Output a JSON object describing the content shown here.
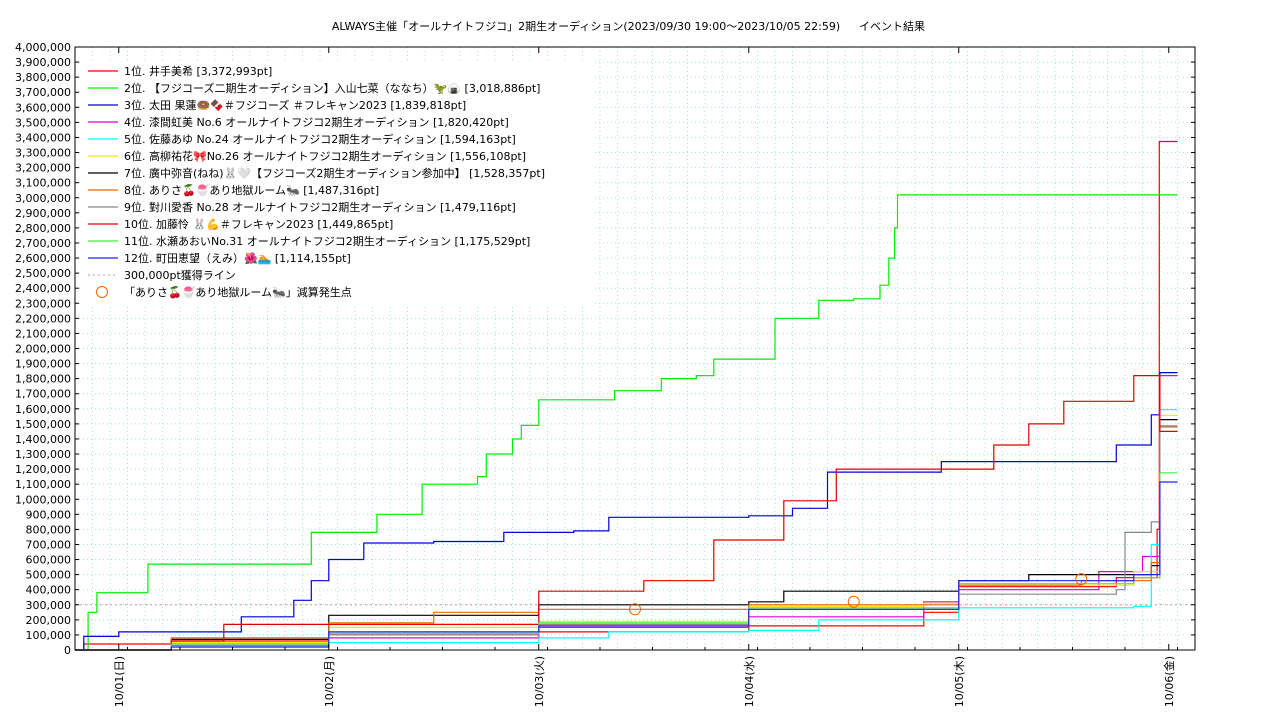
{
  "chart_data": {
    "type": "line",
    "title": "ALWAYS主催「オールナイトフジコ」2期生オーディション(2023/09/30 19:00〜2023/10/05 22:59)",
    "subtitle": "イベント結果",
    "ylim": [
      0,
      4000000
    ],
    "xlim": [
      "2023-09-30 19:00",
      "2023-10-06 03:00"
    ],
    "y_ticks": [
      "0",
      "100,000",
      "200,000",
      "300,000",
      "400,000",
      "500,000",
      "600,000",
      "700,000",
      "800,000",
      "900,000",
      "1,000,000",
      "1,100,000",
      "1,200,000",
      "1,300,000",
      "1,400,000",
      "1,500,000",
      "1,600,000",
      "1,700,000",
      "1,800,000",
      "1,900,000",
      "2,000,000",
      "2,100,000",
      "2,200,000",
      "2,300,000",
      "2,400,000",
      "2,500,000",
      "2,600,000",
      "2,700,000",
      "2,800,000",
      "2,900,000",
      "3,000,000",
      "3,100,000",
      "3,200,000",
      "3,300,000",
      "3,400,000",
      "3,500,000",
      "3,600,000",
      "3,700,000",
      "3,800,000",
      "3,900,000",
      "4,000,000"
    ],
    "x_ticks": [
      {
        "label": "10/01(日)",
        "x": "2023-10-01 00:00"
      },
      {
        "label": "10/02(月)",
        "x": "2023-10-02 00:00"
      },
      {
        "label": "10/03(火)",
        "x": "2023-10-03 00:00"
      },
      {
        "label": "10/04(水)",
        "x": "2023-10-04 00:00"
      },
      {
        "label": "10/05(木)",
        "x": "2023-10-05 00:00"
      },
      {
        "label": "10/06(金)",
        "x": "2023-10-06 00:00"
      }
    ],
    "grid": true,
    "legend_position": "top-left",
    "series": [
      {
        "name": "1位. 井手美希 [3,372,993pt]",
        "color": "#ff0000",
        "points": [
          [
            "2023-09-30 19:00",
            0
          ],
          [
            "2023-09-30 20:00",
            40000
          ],
          [
            "2023-10-01 06:00",
            60000
          ],
          [
            "2023-10-01 12:00",
            60000
          ],
          [
            "2023-10-02 00:00",
            100000
          ],
          [
            "2023-10-03 00:00",
            120000
          ],
          [
            "2023-10-04 00:00",
            160000
          ],
          [
            "2023-10-04 20:00",
            250000
          ],
          [
            "2023-10-05 00:00",
            420000
          ],
          [
            "2023-10-05 18:00",
            480000
          ],
          [
            "2023-10-05 22:40",
            800000
          ],
          [
            "2023-10-05 22:55",
            3372993
          ],
          [
            "2023-10-06 01:00",
            3372993
          ]
        ]
      },
      {
        "name": "2位. 【フジコーズ二期生オーディション】入山七菜（ななち）🦖🍙 [3,018,886pt]",
        "color": "#00ee00",
        "points": [
          [
            "2023-09-30 19:00",
            0
          ],
          [
            "2023-09-30 20:30",
            250000
          ],
          [
            "2023-09-30 21:30",
            380000
          ],
          [
            "2023-10-01 03:00",
            380000
          ],
          [
            "2023-10-01 03:20",
            570000
          ],
          [
            "2023-10-01 21:00",
            570000
          ],
          [
            "2023-10-01 22:00",
            780000
          ],
          [
            "2023-10-02 05:00",
            780000
          ],
          [
            "2023-10-02 05:30",
            900000
          ],
          [
            "2023-10-02 10:00",
            900000
          ],
          [
            "2023-10-02 10:40",
            1100000
          ],
          [
            "2023-10-02 16:00",
            1100000
          ],
          [
            "2023-10-02 17:00",
            1150000
          ],
          [
            "2023-10-02 18:00",
            1300000
          ],
          [
            "2023-10-02 21:00",
            1400000
          ],
          [
            "2023-10-02 22:00",
            1490000
          ],
          [
            "2023-10-03 00:00",
            1660000
          ],
          [
            "2023-10-03 08:00",
            1660000
          ],
          [
            "2023-10-03 08:40",
            1720000
          ],
          [
            "2023-10-03 13:00",
            1720000
          ],
          [
            "2023-10-03 14:00",
            1800000
          ],
          [
            "2023-10-03 18:00",
            1820000
          ],
          [
            "2023-10-03 20:00",
            1930000
          ],
          [
            "2023-10-04 02:00",
            1930000
          ],
          [
            "2023-10-04 03:00",
            2200000
          ],
          [
            "2023-10-04 07:00",
            2200000
          ],
          [
            "2023-10-04 08:00",
            2320000
          ],
          [
            "2023-10-04 12:00",
            2330000
          ],
          [
            "2023-10-04 15:00",
            2420000
          ],
          [
            "2023-10-04 16:00",
            2600000
          ],
          [
            "2023-10-04 16:40",
            2800000
          ],
          [
            "2023-10-04 17:00",
            3018886
          ],
          [
            "2023-10-06 01:00",
            3018886
          ]
        ]
      },
      {
        "name": "3位. 太田 果蓮🍩🍫＃フジコーズ ＃フレキャン2023 [1,839,818pt]",
        "color": "#0000dd",
        "points": [
          [
            "2023-09-30 19:00",
            0
          ],
          [
            "2023-09-30 20:00",
            90000
          ],
          [
            "2023-10-01 00:00",
            120000
          ],
          [
            "2023-10-01 12:00",
            120000
          ],
          [
            "2023-10-01 14:00",
            220000
          ],
          [
            "2023-10-01 20:00",
            330000
          ],
          [
            "2023-10-01 22:00",
            460000
          ],
          [
            "2023-10-02 00:00",
            600000
          ],
          [
            "2023-10-02 04:00",
            710000
          ],
          [
            "2023-10-02 12:00",
            720000
          ],
          [
            "2023-10-02 20:00",
            780000
          ],
          [
            "2023-10-03 04:00",
            790000
          ],
          [
            "2023-10-03 08:00",
            880000
          ],
          [
            "2023-10-04 00:00",
            890000
          ],
          [
            "2023-10-04 05:00",
            940000
          ],
          [
            "2023-10-04 09:00",
            1180000
          ],
          [
            "2023-10-04 18:00",
            1180000
          ],
          [
            "2023-10-04 22:00",
            1250000
          ],
          [
            "2023-10-05 14:00",
            1250000
          ],
          [
            "2023-10-05 18:00",
            1360000
          ],
          [
            "2023-10-05 22:00",
            1560000
          ],
          [
            "2023-10-05 22:59",
            1839818
          ],
          [
            "2023-10-06 01:00",
            1839818
          ]
        ]
      },
      {
        "name": "4位. 漆間虹美 No.6 オールナイトフジコ2期生オーディション [1,820,420pt]",
        "color": "#dd00dd",
        "points": [
          [
            "2023-09-30 19:00",
            0
          ],
          [
            "2023-10-01 06:00",
            40000
          ],
          [
            "2023-10-02 00:00",
            80000
          ],
          [
            "2023-10-03 00:00",
            150000
          ],
          [
            "2023-10-04 00:00",
            220000
          ],
          [
            "2023-10-04 20:00",
            320000
          ],
          [
            "2023-10-05 00:00",
            400000
          ],
          [
            "2023-10-05 16:00",
            520000
          ],
          [
            "2023-10-05 21:00",
            620000
          ],
          [
            "2023-10-05 22:59",
            1820420
          ],
          [
            "2023-10-06 01:00",
            1820420
          ]
        ]
      },
      {
        "name": "5位. 佐藤あゆ No.24 オールナイトフジコ2期生オーディション [1,594,163pt]",
        "color": "#00ffff",
        "points": [
          [
            "2023-09-30 19:00",
            0
          ],
          [
            "2023-10-01 06:00",
            20000
          ],
          [
            "2023-10-02 00:00",
            50000
          ],
          [
            "2023-10-03 00:00",
            80000
          ],
          [
            "2023-10-03 08:00",
            120000
          ],
          [
            "2023-10-04 00:00",
            130000
          ],
          [
            "2023-10-04 08:00",
            200000
          ],
          [
            "2023-10-05 00:00",
            280000
          ],
          [
            "2023-10-05 20:00",
            290000
          ],
          [
            "2023-10-05 22:00",
            700000
          ],
          [
            "2023-10-05 22:59",
            1594163
          ],
          [
            "2023-10-06 01:00",
            1594163
          ]
        ]
      },
      {
        "name": "6位. 高柳祐花🎀No.26 オールナイトフジコ2期生オーディション [1,556,108pt]",
        "color": "#eeee00",
        "points": [
          [
            "2023-09-30 19:00",
            0
          ],
          [
            "2023-10-01 06:00",
            50000
          ],
          [
            "2023-10-02 00:00",
            150000
          ],
          [
            "2023-10-03 00:00",
            190000
          ],
          [
            "2023-10-04 00:00",
            290000
          ],
          [
            "2023-10-04 20:00",
            310000
          ],
          [
            "2023-10-05 00:00",
            430000
          ],
          [
            "2023-10-05 20:00",
            520000
          ],
          [
            "2023-10-05 22:59",
            1556108
          ],
          [
            "2023-10-06 01:00",
            1556108
          ]
        ]
      },
      {
        "name": "7位. 廣中弥音(ねね)🐰🤍【フジコーズ2期生オーディション参加中】 [1,528,357pt]",
        "color": "#000000",
        "points": [
          [
            "2023-09-30 19:00",
            0
          ],
          [
            "2023-10-01 06:00",
            70000
          ],
          [
            "2023-10-02 00:00",
            230000
          ],
          [
            "2023-10-03 00:00",
            300000
          ],
          [
            "2023-10-04 00:00",
            320000
          ],
          [
            "2023-10-04 04:00",
            390000
          ],
          [
            "2023-10-05 00:00",
            460000
          ],
          [
            "2023-10-05 08:00",
            500000
          ],
          [
            "2023-10-05 22:00",
            560000
          ],
          [
            "2023-10-05 22:59",
            1528357
          ],
          [
            "2023-10-06 01:00",
            1528357
          ]
        ]
      },
      {
        "name": "8位. ありさ🍒🍧あり地獄ルーム🐜 [1,487,316pt]",
        "color": "#ee6600",
        "points": [
          [
            "2023-09-30 19:00",
            0
          ],
          [
            "2023-10-01 06:00",
            80000
          ],
          [
            "2023-10-02 00:00",
            180000
          ],
          [
            "2023-10-02 12:00",
            250000
          ],
          [
            "2023-10-03 00:00",
            270000
          ],
          [
            "2023-10-04 00:00",
            300000
          ],
          [
            "2023-10-05 00:00",
            430000
          ],
          [
            "2023-10-05 14:00",
            460000
          ],
          [
            "2023-10-05 22:00",
            580000
          ],
          [
            "2023-10-05 22:59",
            1487316
          ],
          [
            "2023-10-06 01:00",
            1487316
          ]
        ]
      },
      {
        "name": "9位. 對川愛香 No.28 オールナイトフジコ2期生オーディション [1,479,116pt]",
        "color": "#888888",
        "points": [
          [
            "2023-09-30 19:00",
            0
          ],
          [
            "2023-10-01 06:00",
            30000
          ],
          [
            "2023-10-02 00:00",
            100000
          ],
          [
            "2023-10-03 00:00",
            170000
          ],
          [
            "2023-10-04 00:00",
            270000
          ],
          [
            "2023-10-05 00:00",
            370000
          ],
          [
            "2023-10-05 18:00",
            400000
          ],
          [
            "2023-10-05 19:00",
            780000
          ],
          [
            "2023-10-05 22:00",
            850000
          ],
          [
            "2023-10-05 22:59",
            1479116
          ],
          [
            "2023-10-06 01:00",
            1479116
          ]
        ]
      },
      {
        "name": "10位. 加藤怜 🐰💪＃フレキャン2023 [1,449,865pt]",
        "color": "#dd0000",
        "points": [
          [
            "2023-09-30 19:00",
            0
          ],
          [
            "2023-10-01 06:00",
            60000
          ],
          [
            "2023-10-01 12:00",
            170000
          ],
          [
            "2023-10-02 00:00",
            170000
          ],
          [
            "2023-10-03 00:00",
            390000
          ],
          [
            "2023-10-03 12:00",
            460000
          ],
          [
            "2023-10-03 20:00",
            730000
          ],
          [
            "2023-10-04 00:00",
            730000
          ],
          [
            "2023-10-04 04:00",
            990000
          ],
          [
            "2023-10-04 10:00",
            1200000
          ],
          [
            "2023-10-05 04:00",
            1360000
          ],
          [
            "2023-10-05 08:00",
            1500000
          ],
          [
            "2023-10-05 12:00",
            1650000
          ],
          [
            "2023-10-05 20:00",
            1820000
          ],
          [
            "2023-10-05 22:59",
            1449865
          ],
          [
            "2023-10-06 01:00",
            1449865
          ]
        ]
      },
      {
        "name": "11位. 水瀬あおいNo.31 オールナイトフジコ2期生オーディション [1,175,529pt]",
        "color": "#44ee44",
        "points": [
          [
            "2023-09-30 19:00",
            0
          ],
          [
            "2023-10-01 06:00",
            40000
          ],
          [
            "2023-10-02 00:00",
            110000
          ],
          [
            "2023-10-03 00:00",
            180000
          ],
          [
            "2023-10-04 00:00",
            280000
          ],
          [
            "2023-10-05 00:00",
            440000
          ],
          [
            "2023-10-05 20:00",
            480000
          ],
          [
            "2023-10-05 22:59",
            1175529
          ],
          [
            "2023-10-06 01:00",
            1175529
          ]
        ]
      },
      {
        "name": "12位. 町田恵望（えみ）🌺🏊 [1,114,155pt]",
        "color": "#2222ee",
        "points": [
          [
            "2023-09-30 19:00",
            0
          ],
          [
            "2023-10-01 06:00",
            20000
          ],
          [
            "2023-10-02 00:00",
            120000
          ],
          [
            "2023-10-03 00:00",
            160000
          ],
          [
            "2023-10-04 00:00",
            270000
          ],
          [
            "2023-10-05 00:00",
            460000
          ],
          [
            "2023-10-05 20:00",
            500000
          ],
          [
            "2023-10-05 22:59",
            1114155
          ],
          [
            "2023-10-06 01:00",
            1114155
          ]
        ]
      }
    ],
    "reference_line": {
      "name": "300,000pt獲得ライン",
      "value": 300000,
      "color": "#cc9999"
    },
    "markers": {
      "name": "「ありさ🍒🍧あり地獄ルーム🐜」減算発生点",
      "color": "#ee6600",
      "points": [
        [
          "2023-10-03 11:00",
          270000
        ],
        [
          "2023-10-04 12:00",
          320000
        ],
        [
          "2023-10-05 14:00",
          470000
        ]
      ]
    }
  }
}
